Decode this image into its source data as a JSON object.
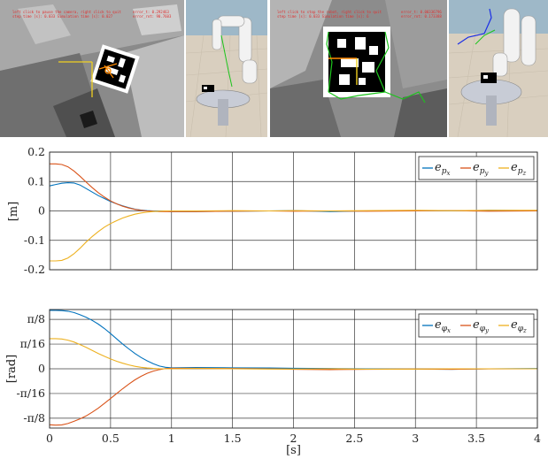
{
  "frames": [
    {
      "overlay_lines": [
        "left click to pause the camera, right click to quit",
        "step time [s]: 0.033  Simulation time [s]: 0.027"
      ],
      "error_lines": [
        "error_t: 0.292463",
        "error_rot: 90.7603"
      ]
    },
    {
      "overlay_lines": [
        "left click to stop the robot, right click to quit",
        "step time [s]: 0.033  Simulation time [s]: 6"
      ],
      "error_lines": [
        "error_t: 0.00336796",
        "error_rot: 0.173388"
      ]
    }
  ],
  "chart_data": [
    {
      "type": "line",
      "ylabel": "[m]",
      "xlabel": "",
      "xlim": [
        0,
        4
      ],
      "ylim": [
        -0.2,
        0.2
      ],
      "x_ticks": [
        "0",
        "0.5",
        "1",
        "1.5",
        "2",
        "2.5",
        "3",
        "3.5",
        "4"
      ],
      "x_ticks_shown": false,
      "y_ticks": [
        {
          "value": 0.2,
          "label": "0.2"
        },
        {
          "value": 0.1,
          "label": "0.1"
        },
        {
          "value": 0,
          "label": "0"
        },
        {
          "value": -0.1,
          "label": "-0.1"
        },
        {
          "value": -0.2,
          "label": "-0.2"
        }
      ],
      "grid": true,
      "legend_position": "top-right",
      "series": [
        {
          "name": "e_px",
          "base": "e",
          "sub": "p",
          "subsub": "x",
          "color": "#0072bd",
          "x": [
            0,
            0.05,
            0.1,
            0.15,
            0.2,
            0.25,
            0.3,
            0.35,
            0.4,
            0.45,
            0.5,
            0.55,
            0.6,
            0.65,
            0.7,
            0.75,
            0.8,
            0.85,
            0.9,
            0.95,
            1.0,
            1.2,
            1.5,
            1.8,
            2.0,
            2.3,
            2.6,
            3.0,
            3.3,
            3.6,
            4.0
          ],
          "y": [
            0.085,
            0.09,
            0.094,
            0.096,
            0.095,
            0.088,
            0.076,
            0.064,
            0.052,
            0.042,
            0.032,
            0.024,
            0.017,
            0.011,
            0.006,
            0.003,
            0.001,
            0.0,
            -0.001,
            -0.001,
            -0.002,
            -0.002,
            -0.001,
            0.0,
            0.001,
            -0.002,
            0.0,
            0.001,
            0.0,
            0.002,
            0.001
          ]
        },
        {
          "name": "e_py",
          "base": "e",
          "sub": "p",
          "subsub": "y",
          "color": "#d95319",
          "x": [
            0,
            0.05,
            0.1,
            0.15,
            0.2,
            0.25,
            0.3,
            0.35,
            0.4,
            0.45,
            0.5,
            0.55,
            0.6,
            0.65,
            0.7,
            0.75,
            0.8,
            0.85,
            0.9,
            0.95,
            1.0,
            1.2,
            1.5,
            1.8,
            2.0,
            2.3,
            2.6,
            3.0,
            3.3,
            3.6,
            4.0
          ],
          "y": [
            0.16,
            0.16,
            0.158,
            0.15,
            0.136,
            0.118,
            0.098,
            0.079,
            0.062,
            0.047,
            0.034,
            0.024,
            0.016,
            0.01,
            0.005,
            0.002,
            0.0,
            -0.001,
            -0.002,
            -0.002,
            -0.002,
            -0.002,
            -0.001,
            0.0,
            -0.001,
            0.0,
            -0.001,
            0.0,
            0.001,
            -0.001,
            0.0
          ]
        },
        {
          "name": "e_pz",
          "base": "e",
          "sub": "p",
          "subsub": "z",
          "color": "#edb120",
          "x": [
            0,
            0.05,
            0.1,
            0.15,
            0.2,
            0.25,
            0.3,
            0.35,
            0.4,
            0.45,
            0.5,
            0.55,
            0.6,
            0.65,
            0.7,
            0.75,
            0.8,
            0.85,
            0.9,
            0.95,
            1.0,
            1.2,
            1.5,
            1.8,
            2.0,
            2.3,
            2.6,
            3.0,
            3.3,
            3.6,
            4.0
          ],
          "y": [
            -0.17,
            -0.17,
            -0.168,
            -0.16,
            -0.146,
            -0.127,
            -0.106,
            -0.087,
            -0.07,
            -0.055,
            -0.043,
            -0.033,
            -0.024,
            -0.017,
            -0.011,
            -0.007,
            -0.004,
            -0.002,
            -0.001,
            0.0,
            0.0,
            0.0,
            0.001,
            0.0,
            0.001,
            0.0,
            0.001,
            0.002,
            0.001,
            0.002,
            0.002
          ]
        }
      ]
    },
    {
      "type": "line",
      "ylabel": "[rad]",
      "xlabel": "[s]",
      "xlim": [
        0,
        4
      ],
      "ylim": [
        -0.4712,
        0.4712
      ],
      "x_ticks": [
        "0",
        "0.5",
        "1",
        "1.5",
        "2",
        "2.5",
        "3",
        "3.5",
        "4"
      ],
      "x_ticks_shown": true,
      "y_ticks": [
        {
          "value": 0.3927,
          "label": "π/8"
        },
        {
          "value": 0.19635,
          "label": "π/16"
        },
        {
          "value": 0,
          "label": "0"
        },
        {
          "value": -0.19635,
          "label": "-π/16"
        },
        {
          "value": -0.3927,
          "label": "-π/8"
        }
      ],
      "grid": true,
      "legend_position": "top-right",
      "series": [
        {
          "name": "e_φx",
          "base": "e",
          "sub": "φ",
          "subsub": "x",
          "color": "#0072bd",
          "x": [
            0,
            0.05,
            0.1,
            0.15,
            0.2,
            0.25,
            0.3,
            0.35,
            0.4,
            0.45,
            0.5,
            0.55,
            0.6,
            0.65,
            0.7,
            0.75,
            0.8,
            0.85,
            0.9,
            0.95,
            1.0,
            1.2,
            1.5,
            1.8,
            2.0,
            2.3,
            2.6,
            3.0,
            3.3,
            3.6,
            4.0
          ],
          "y": [
            0.465,
            0.465,
            0.463,
            0.458,
            0.447,
            0.43,
            0.41,
            0.385,
            0.355,
            0.32,
            0.28,
            0.238,
            0.196,
            0.158,
            0.122,
            0.09,
            0.063,
            0.04,
            0.022,
            0.012,
            0.008,
            0.01,
            0.008,
            0.007,
            0.004,
            0.002,
            0.0,
            -0.002,
            -0.004,
            0.0,
            0.002
          ]
        },
        {
          "name": "e_φy",
          "base": "e",
          "sub": "φ",
          "subsub": "y",
          "color": "#d95319",
          "x": [
            0,
            0.05,
            0.1,
            0.15,
            0.2,
            0.25,
            0.3,
            0.35,
            0.4,
            0.45,
            0.5,
            0.55,
            0.6,
            0.65,
            0.7,
            0.75,
            0.8,
            0.85,
            0.9,
            0.95,
            1.0,
            1.2,
            1.5,
            1.8,
            2.0,
            2.3,
            2.6,
            3.0,
            3.3,
            3.6,
            4.0
          ],
          "y": [
            -0.445,
            -0.448,
            -0.446,
            -0.435,
            -0.418,
            -0.398,
            -0.375,
            -0.345,
            -0.312,
            -0.275,
            -0.236,
            -0.196,
            -0.158,
            -0.122,
            -0.088,
            -0.06,
            -0.036,
            -0.018,
            -0.006,
            0.002,
            0.004,
            0.004,
            0.002,
            0.0,
            -0.004,
            -0.006,
            -0.004,
            -0.002,
            -0.004,
            -0.001,
            0.0
          ]
        },
        {
          "name": "e_φz",
          "base": "e",
          "sub": "φ",
          "subsub": "z",
          "color": "#edb120",
          "x": [
            0,
            0.05,
            0.1,
            0.15,
            0.2,
            0.25,
            0.3,
            0.35,
            0.4,
            0.45,
            0.5,
            0.55,
            0.6,
            0.65,
            0.7,
            0.75,
            0.8,
            0.85,
            0.9,
            0.95,
            1.0,
            1.2,
            1.5,
            1.8,
            2.0,
            2.3,
            2.6,
            3.0,
            3.3,
            3.6,
            4.0
          ],
          "y": [
            0.24,
            0.24,
            0.237,
            0.228,
            0.213,
            0.193,
            0.17,
            0.146,
            0.122,
            0.099,
            0.078,
            0.06,
            0.044,
            0.031,
            0.02,
            0.012,
            0.006,
            0.003,
            0.001,
            0.0,
            0.0,
            0.002,
            0.0,
            -0.002,
            -0.002,
            0.0,
            -0.003,
            -0.002,
            0.0,
            0.0,
            0.0
          ]
        }
      ]
    }
  ]
}
